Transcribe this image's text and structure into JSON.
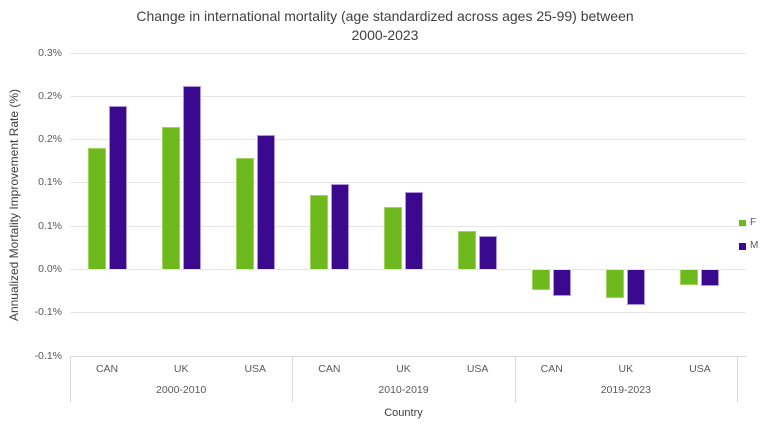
{
  "title": {
    "line1": "Change in international mortality (age standardized across ages 25-99) between",
    "line2": "2000-2023"
  },
  "y_axis": {
    "title": "Annualized Mortality Improvement Rate (%)",
    "tick_labels": [
      "0.3%",
      "0.2%",
      "0.2%",
      "0.1%",
      "0.1%",
      "0.0%",
      "-0.1%",
      "-0.1%"
    ]
  },
  "x_axis": {
    "title": "Country",
    "category_labels": [
      "CAN",
      "UK",
      "USA",
      "CAN",
      "UK",
      "USA",
      "CAN",
      "UK",
      "USA"
    ],
    "group_labels": [
      "2000-2010",
      "2010-2019",
      "2019-2023"
    ]
  },
  "legend": [
    {
      "label": "F",
      "color": "#6EB91E"
    },
    {
      "label": "M",
      "color": "#3A098E"
    }
  ],
  "colors": {
    "f_bar": "#6EB91E",
    "f_bar_edge": "#9ED45C",
    "m_bar": "#3A098E",
    "m_bar_edge": "#AE97DC",
    "gridline": "#E6E6E6",
    "axis_line": "#D9D9D9",
    "tick_text": "#595959",
    "title_text": "#404040"
  },
  "chart_data": {
    "type": "bar",
    "title": "Change in international mortality (age standardized across ages 25-99) between 2000-2023",
    "xlabel": "Country",
    "ylabel": "Annualized Mortality Improvement Rate (%)",
    "categories": [
      "CAN",
      "UK",
      "USA",
      "CAN",
      "UK",
      "USA",
      "CAN",
      "UK",
      "USA"
    ],
    "period_groups": [
      {
        "label": "2000-2010",
        "categories": [
          "CAN",
          "UK",
          "USA"
        ]
      },
      {
        "label": "2010-2019",
        "categories": [
          "CAN",
          "UK",
          "USA"
        ]
      },
      {
        "label": "2019-2023",
        "categories": [
          "CAN",
          "UK",
          "USA"
        ]
      }
    ],
    "series": [
      {
        "name": "F",
        "color": "#6EB91E",
        "values": [
          0.14,
          0.165,
          0.129,
          0.086,
          0.072,
          0.044,
          -0.023,
          -0.032,
          -0.017
        ]
      },
      {
        "name": "M",
        "color": "#3A098E",
        "values": [
          0.189,
          0.212,
          0.155,
          0.099,
          0.09,
          0.039,
          -0.029,
          -0.04,
          -0.018
        ]
      }
    ],
    "unit": "%",
    "y_tick_values": [
      0.25,
      0.2,
      0.15,
      0.1,
      0.05,
      0.0,
      -0.05,
      -0.1
    ],
    "y_tick_labels_displayed": [
      "0.3%",
      "0.2%",
      "0.2%",
      "0.1%",
      "0.1%",
      "0.0%",
      "-0.1%",
      "-0.1%"
    ],
    "ylim": [
      -0.1,
      0.25
    ],
    "grid": true,
    "legend_position": "right"
  }
}
